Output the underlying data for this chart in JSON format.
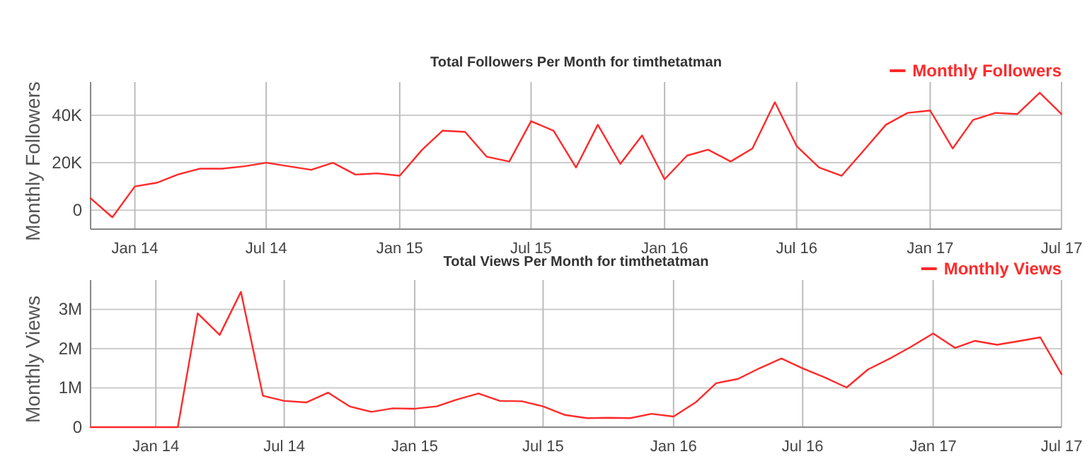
{
  "chart_data": [
    {
      "type": "line",
      "title": "Total Followers Per Month for timthetatman",
      "ylabel": "Monthly Followers",
      "legend": "top right",
      "grid": true,
      "x": [
        "2013-11",
        "2013-12",
        "2014-01",
        "2014-02",
        "2014-03",
        "2014-04",
        "2014-05",
        "2014-06",
        "2014-07",
        "2014-08",
        "2014-09",
        "2014-10",
        "2014-11",
        "2014-12",
        "2015-01",
        "2015-02",
        "2015-03",
        "2015-04",
        "2015-05",
        "2015-06",
        "2015-07",
        "2015-08",
        "2015-09",
        "2015-10",
        "2015-11",
        "2015-12",
        "2016-01",
        "2016-02",
        "2016-03",
        "2016-04",
        "2016-05",
        "2016-06",
        "2016-07",
        "2016-08",
        "2016-09",
        "2016-10",
        "2016-11",
        "2016-12",
        "2017-01",
        "2017-02",
        "2017-03",
        "2017-04",
        "2017-05",
        "2017-06",
        "2017-07"
      ],
      "series": [
        {
          "name": "Monthly Followers",
          "color": "#ff2a2a",
          "values": [
            5000,
            -3000,
            10000,
            11600,
            15000,
            17500,
            17500,
            18500,
            20000,
            18500,
            17000,
            20000,
            15000,
            15500,
            14500,
            25500,
            33500,
            33000,
            22500,
            20500,
            37500,
            33500,
            18000,
            36000,
            19500,
            31500,
            13000,
            23000,
            25500,
            20500,
            26000,
            45500,
            27000,
            18000,
            14500,
            25000,
            36000,
            41000,
            42000,
            26000,
            38000,
            41000,
            40500,
            49500,
            40500
          ]
        }
      ],
      "xlim": [
        "2013-11",
        "2017-07"
      ],
      "xticks": [
        {
          "value": "2014-01",
          "label": "Jan 14"
        },
        {
          "value": "2014-07",
          "label": "Jul 14"
        },
        {
          "value": "2015-01",
          "label": "Jan 15"
        },
        {
          "value": "2015-07",
          "label": "Jul 15"
        },
        {
          "value": "2016-01",
          "label": "Jan 16"
        },
        {
          "value": "2016-07",
          "label": "Jul 16"
        },
        {
          "value": "2017-01",
          "label": "Jan 17"
        },
        {
          "value": "2017-07",
          "label": "Jul 17"
        }
      ],
      "ylim": [
        -8000,
        54000
      ],
      "yticks": [
        0,
        {
          "value": 20000,
          "label": "20K"
        },
        {
          "value": 40000,
          "label": "40K"
        }
      ]
    },
    {
      "type": "line",
      "title": "Total Views Per Month for timthetatman",
      "ylabel": "Monthly Views",
      "legend": "top right",
      "grid": true,
      "x": [
        "2013-10",
        "2013-11",
        "2013-12",
        "2014-01",
        "2014-02",
        "2014-03",
        "2014-04",
        "2014-05",
        "2014-06",
        "2014-07",
        "2014-08",
        "2014-09",
        "2014-10",
        "2014-11",
        "2014-12",
        "2015-01",
        "2015-02",
        "2015-03",
        "2015-04",
        "2015-05",
        "2015-06",
        "2015-07",
        "2015-08",
        "2015-09",
        "2015-10",
        "2015-11",
        "2015-12",
        "2016-01",
        "2016-02",
        "2016-03",
        "2016-04",
        "2016-05",
        "2016-06",
        "2016-07",
        "2016-08",
        "2016-09",
        "2016-10",
        "2016-11",
        "2016-12",
        "2017-01",
        "2017-02",
        "2017-03",
        "2017-04",
        "2017-05",
        "2017-06",
        "2017-07"
      ],
      "series": [
        {
          "name": "Monthly Views",
          "color": "#ff2a2a",
          "values": [
            0,
            0,
            0,
            0,
            0,
            2900000,
            2350000,
            3450000,
            800000,
            670000,
            630000,
            880000,
            530000,
            390000,
            480000,
            470000,
            530000,
            700000,
            860000,
            670000,
            660000,
            530000,
            310000,
            230000,
            240000,
            230000,
            340000,
            270000,
            630000,
            1120000,
            1230000,
            1500000,
            1750000,
            1500000,
            1270000,
            1010000,
            1470000,
            1750000,
            2050000,
            2390000,
            2020000,
            2200000,
            2100000,
            2190000,
            2290000,
            1350000
          ]
        }
      ],
      "xlim": [
        "2013-10",
        "2017-07"
      ],
      "xticks": [
        {
          "value": "2014-01",
          "label": "Jan 14"
        },
        {
          "value": "2014-07",
          "label": "Jul 14"
        },
        {
          "value": "2015-01",
          "label": "Jan 15"
        },
        {
          "value": "2015-07",
          "label": "Jul 15"
        },
        {
          "value": "2016-01",
          "label": "Jan 16"
        },
        {
          "value": "2016-07",
          "label": "Jul 16"
        },
        {
          "value": "2017-01",
          "label": "Jan 17"
        },
        {
          "value": "2017-07",
          "label": "Jul 17"
        }
      ],
      "ylim": [
        0,
        3750000
      ],
      "yticks": [
        0,
        {
          "value": 1000000,
          "label": "1M"
        },
        {
          "value": 2000000,
          "label": "2M"
        },
        {
          "value": 3000000,
          "label": "3M"
        }
      ]
    }
  ]
}
